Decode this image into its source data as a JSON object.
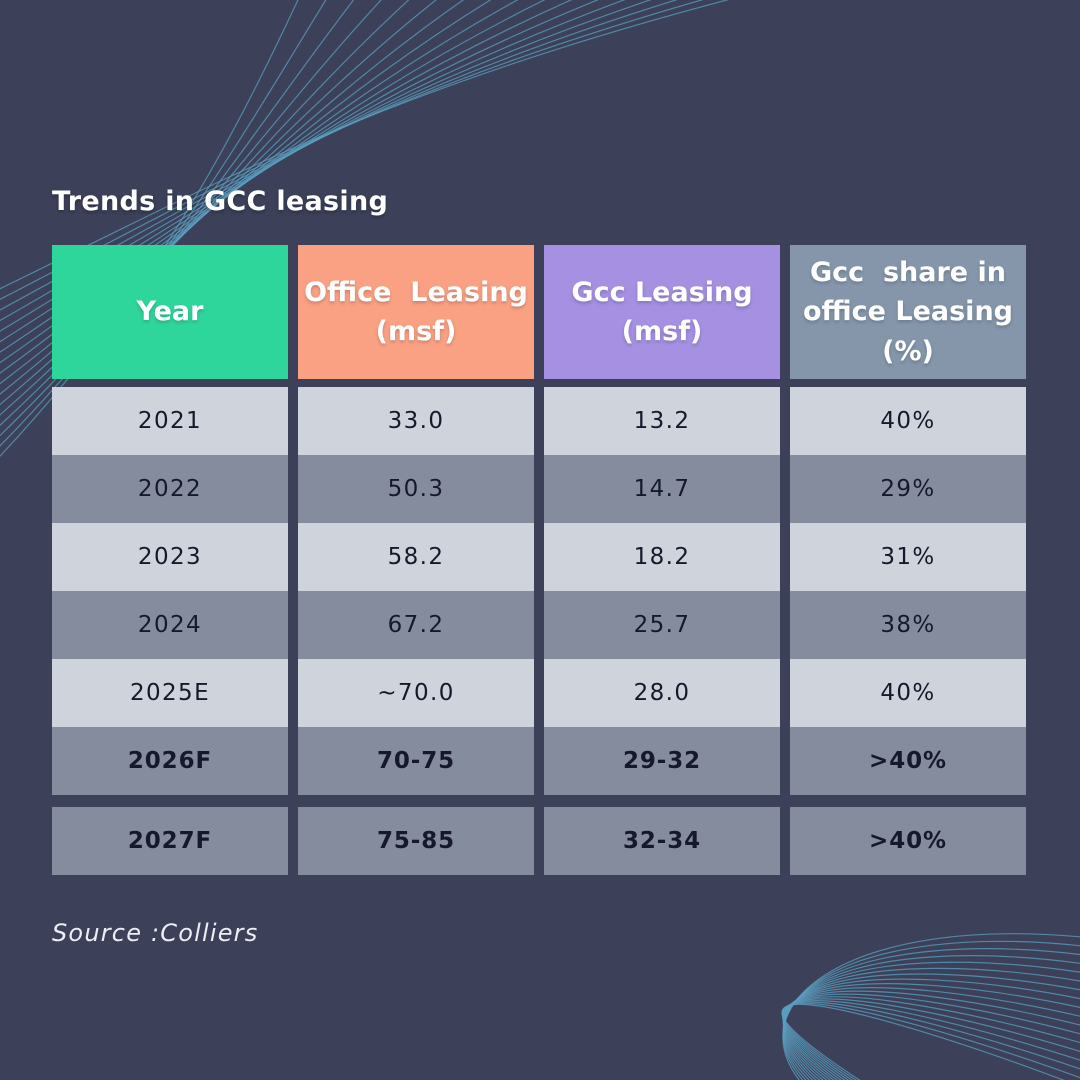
{
  "colors": {
    "background": "#3c4058",
    "wave": "#5b9fc0",
    "row_light": "#ced3dc",
    "row_dark": "#858c9e",
    "cell_text": "#16192b",
    "header_text": "#ffffff"
  },
  "title": "Trends in GCC leasing",
  "source": "Source :Colliers",
  "table": {
    "columns": [
      {
        "label": "Year",
        "color": "#2ed69c"
      },
      {
        "label": "Office  Leasing\n(msf)",
        "color": "#faa183"
      },
      {
        "label": "Gcc Leasing\n(msf)",
        "color": "#a690e2"
      },
      {
        "label": "Gcc  share in\noffice Leasing\n(%)",
        "color": "#8596ab"
      }
    ],
    "rows": [
      {
        "shade": "light",
        "bold": false,
        "detached": false,
        "cells": [
          "2021",
          "33.0",
          "13.2",
          "40%"
        ]
      },
      {
        "shade": "dark",
        "bold": false,
        "detached": false,
        "cells": [
          "2022",
          "50.3",
          "14.7",
          "29%"
        ]
      },
      {
        "shade": "light",
        "bold": false,
        "detached": false,
        "cells": [
          "2023",
          "58.2",
          "18.2",
          "31%"
        ]
      },
      {
        "shade": "dark",
        "bold": false,
        "detached": false,
        "cells": [
          "2024",
          "67.2",
          "25.7",
          "38%"
        ]
      },
      {
        "shade": "light",
        "bold": false,
        "detached": false,
        "cells": [
          "2025E",
          "~70.0",
          "28.0",
          "40%"
        ]
      },
      {
        "shade": "dark",
        "bold": true,
        "detached": false,
        "cells": [
          "2026F",
          "70-75",
          "29-32",
          ">40%"
        ]
      },
      {
        "shade": "dark",
        "bold": true,
        "detached": true,
        "cells": [
          "2027F",
          "75-85",
          "32-34",
          ">40%"
        ]
      }
    ]
  },
  "chart_data": {
    "type": "table",
    "title": "Trends in GCC leasing",
    "columns": [
      "Year",
      "Office Leasing (msf)",
      "Gcc Leasing (msf)",
      "Gcc share in office Leasing (%)"
    ],
    "rows": [
      [
        "2021",
        "33.0",
        "13.2",
        "40%"
      ],
      [
        "2022",
        "50.3",
        "14.7",
        "29%"
      ],
      [
        "2023",
        "58.2",
        "18.2",
        "31%"
      ],
      [
        "2024",
        "67.2",
        "25.7",
        "38%"
      ],
      [
        "2025E",
        "~70.0",
        "28.0",
        "40%"
      ],
      [
        "2026F",
        "70-75",
        "29-32",
        ">40%"
      ],
      [
        "2027F",
        "75-85",
        "32-34",
        ">40%"
      ]
    ],
    "source": "Colliers"
  }
}
